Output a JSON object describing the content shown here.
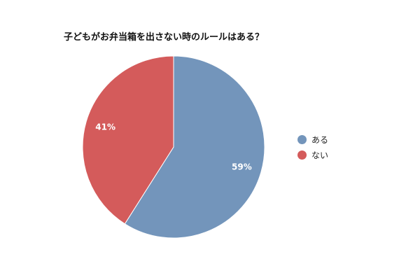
{
  "chart_data": {
    "type": "pie",
    "title": "子どもがお弁当箱を出さない時のルールはある？",
    "categories": [
      "ある",
      "ない"
    ],
    "values": [
      59,
      41
    ],
    "labels": [
      "59%",
      "41%"
    ],
    "colors": [
      "#7395bb",
      "#d45b5b"
    ],
    "start_angle": "top",
    "direction": "clockwise",
    "legend_position": "right"
  }
}
